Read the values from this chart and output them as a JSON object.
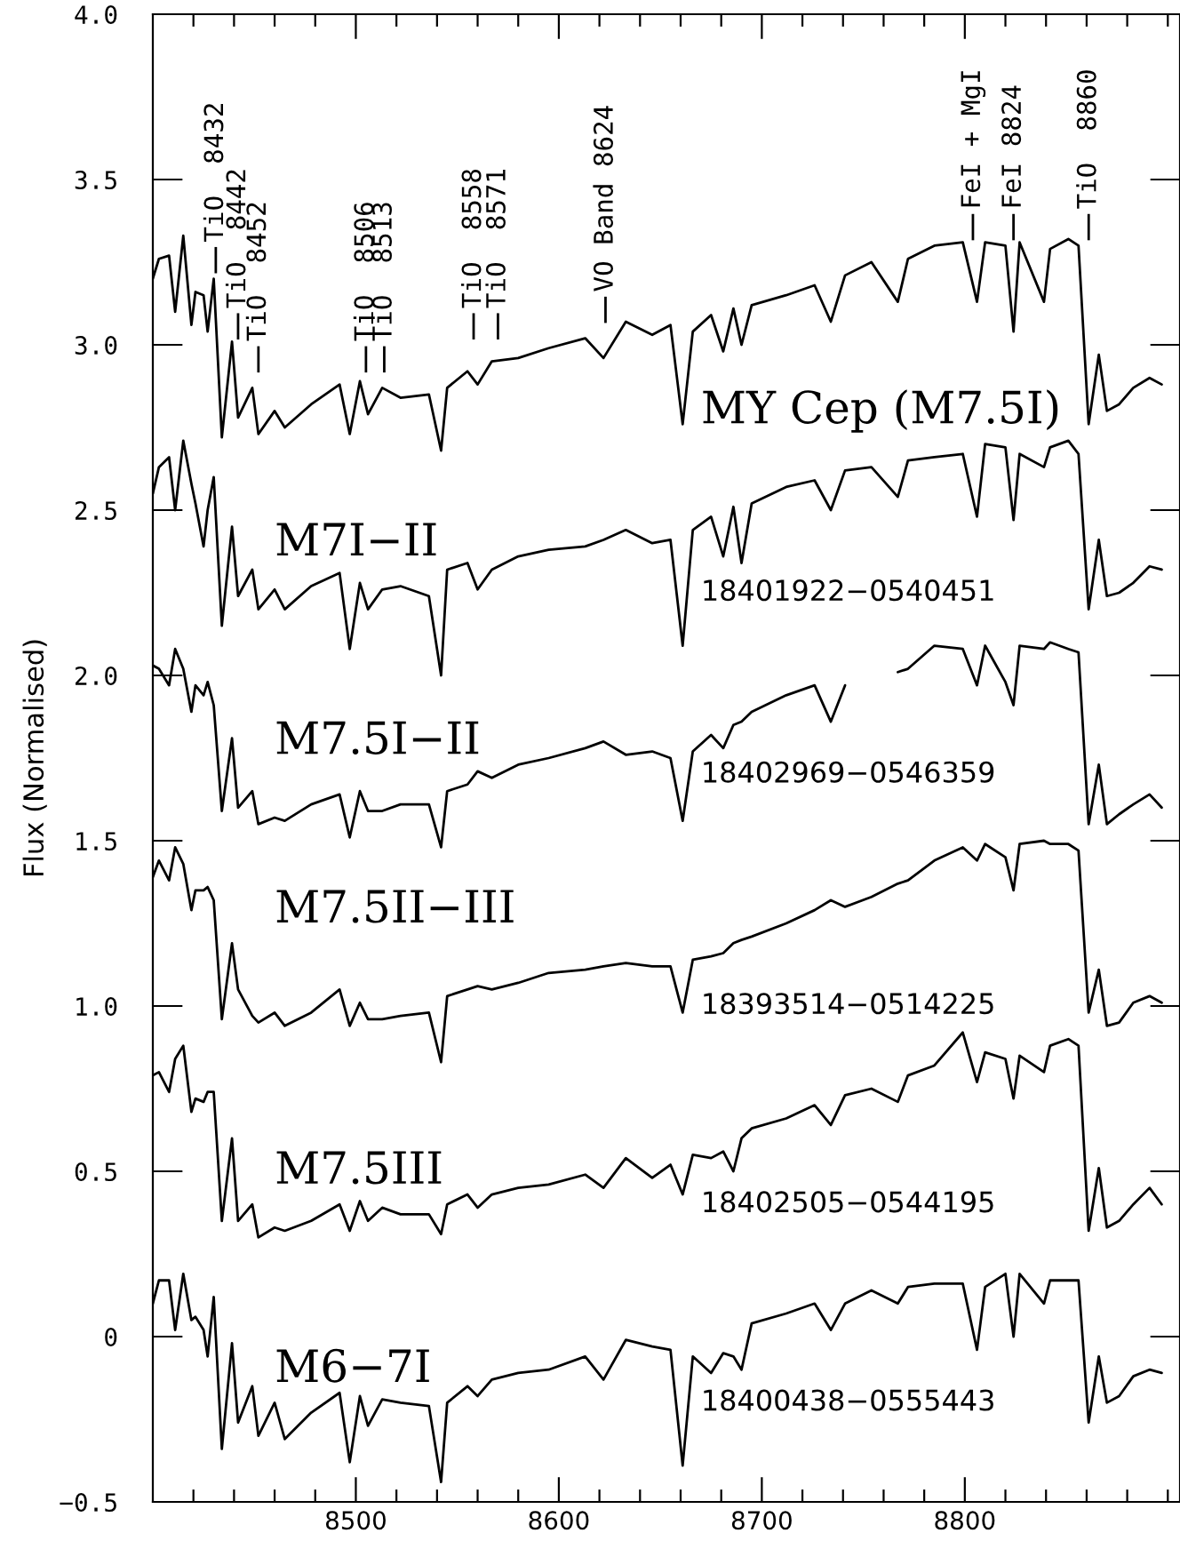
{
  "chart_data": {
    "type": "line",
    "ylabel": "Flux (Normalised)",
    "x": [
      8400,
      8403,
      8408,
      8411,
      8415,
      8419,
      8421,
      8425,
      8427,
      8430,
      8434,
      8439,
      8442,
      8449,
      8452,
      8460,
      8465,
      8478,
      8492,
      8497,
      8502,
      8506,
      8513,
      8522,
      8536,
      8542,
      8545,
      8555,
      8560,
      8567,
      8580,
      8595,
      8613,
      8622,
      8633,
      8646,
      8655,
      8661,
      8666,
      8675,
      8681,
      8686,
      8690,
      8695,
      8712,
      8726,
      8734,
      8741,
      8754,
      8767,
      8772,
      8785,
      8799,
      8806,
      8810,
      8820,
      8824,
      8827,
      8839,
      8842,
      8851,
      8856,
      8861,
      8866,
      8870,
      8876,
      8883,
      8891,
      8897
    ],
    "series": [
      {
        "color": "#000000",
        "values": [
          3.2,
          3.26,
          3.27,
          3.1,
          3.33,
          3.06,
          3.16,
          3.15,
          3.04,
          3.2,
          2.72,
          3.01,
          2.78,
          2.87,
          2.73,
          2.8,
          2.75,
          2.82,
          2.88,
          2.73,
          2.89,
          2.79,
          2.87,
          2.84,
          2.85,
          2.68,
          2.87,
          2.92,
          2.88,
          2.95,
          2.96,
          2.99,
          3.02,
          2.96,
          3.07,
          3.03,
          3.06,
          2.76,
          3.04,
          3.09,
          2.98,
          3.11,
          3.0,
          3.12,
          3.15,
          3.18,
          3.07,
          3.21,
          3.25,
          3.13,
          3.26,
          3.3,
          3.31,
          3.13,
          3.31,
          3.3,
          3.04,
          3.31,
          3.13,
          3.29,
          3.32,
          3.3,
          2.76,
          2.97,
          2.8,
          2.82,
          2.87,
          2.9,
          2.88
        ]
      },
      {
        "color": "#000000",
        "values": [
          2.55,
          2.63,
          2.66,
          2.5,
          2.71,
          2.58,
          2.52,
          2.39,
          2.5,
          2.6,
          2.15,
          2.45,
          2.24,
          2.32,
          2.2,
          2.26,
          2.2,
          2.27,
          2.31,
          2.08,
          2.28,
          2.2,
          2.26,
          2.27,
          2.24,
          2.0,
          2.32,
          2.34,
          2.26,
          2.32,
          2.36,
          2.38,
          2.39,
          2.41,
          2.44,
          2.4,
          2.41,
          2.09,
          2.44,
          2.48,
          2.36,
          2.51,
          2.34,
          2.52,
          2.57,
          2.59,
          2.5,
          2.62,
          2.63,
          2.54,
          2.65,
          2.66,
          2.67,
          2.48,
          2.7,
          2.69,
          2.47,
          2.67,
          2.63,
          2.69,
          2.71,
          2.67,
          2.2,
          2.41,
          2.24,
          2.25,
          2.28,
          2.33,
          2.32
        ]
      },
      {
        "color": "#000000",
        "values": [
          2.03,
          2.02,
          1.97,
          2.08,
          2.02,
          1.89,
          1.97,
          1.94,
          1.98,
          1.91,
          1.59,
          1.81,
          1.6,
          1.65,
          1.55,
          1.57,
          1.56,
          1.61,
          1.64,
          1.51,
          1.65,
          1.59,
          1.59,
          1.61,
          1.61,
          1.48,
          1.65,
          1.67,
          1.71,
          1.69,
          1.73,
          1.75,
          1.78,
          1.8,
          1.76,
          1.77,
          1.75,
          1.56,
          1.77,
          1.82,
          1.78,
          1.85,
          1.86,
          1.89,
          1.94,
          1.97,
          1.86,
          1.97,
          null,
          2.01,
          2.02,
          2.09,
          2.08,
          1.97,
          2.09,
          1.98,
          1.91,
          2.09,
          2.08,
          2.1,
          2.08,
          2.07,
          1.55,
          1.73,
          1.55,
          1.58,
          1.61,
          1.64,
          1.6
        ]
      },
      {
        "color": "#000000",
        "values": [
          1.39,
          1.44,
          1.38,
          1.48,
          1.43,
          1.29,
          1.35,
          1.35,
          1.36,
          1.32,
          0.96,
          1.19,
          1.05,
          0.97,
          0.95,
          0.98,
          0.94,
          0.98,
          1.05,
          0.94,
          1.01,
          0.96,
          0.96,
          0.97,
          0.98,
          0.83,
          1.03,
          1.05,
          1.06,
          1.05,
          1.07,
          1.1,
          1.11,
          1.12,
          1.13,
          1.12,
          1.12,
          0.98,
          1.14,
          1.15,
          1.16,
          1.19,
          1.2,
          1.21,
          1.25,
          1.29,
          1.32,
          1.3,
          1.33,
          1.37,
          1.38,
          1.44,
          1.48,
          1.44,
          1.49,
          1.45,
          1.35,
          1.49,
          1.5,
          1.49,
          1.49,
          1.47,
          0.98,
          1.11,
          0.94,
          0.95,
          1.01,
          1.03,
          1.01
        ]
      },
      {
        "color": "#000000",
        "values": [
          0.79,
          0.8,
          0.74,
          0.84,
          0.88,
          0.68,
          0.72,
          0.71,
          0.74,
          0.74,
          0.35,
          0.6,
          0.35,
          0.4,
          0.3,
          0.33,
          0.32,
          0.35,
          0.4,
          0.32,
          0.41,
          0.35,
          0.39,
          0.37,
          0.37,
          0.31,
          0.4,
          0.43,
          0.39,
          0.43,
          0.45,
          0.46,
          0.49,
          0.45,
          0.54,
          0.48,
          0.52,
          0.43,
          0.55,
          0.54,
          0.56,
          0.5,
          0.6,
          0.63,
          0.66,
          0.7,
          0.64,
          0.73,
          0.75,
          0.71,
          0.79,
          0.82,
          0.92,
          0.77,
          0.86,
          0.84,
          0.72,
          0.85,
          0.8,
          0.88,
          0.9,
          0.88,
          0.32,
          0.51,
          0.33,
          0.35,
          0.4,
          0.45,
          0.4
        ]
      },
      {
        "color": "#000000",
        "values": [
          0.1,
          0.17,
          0.17,
          0.02,
          0.19,
          0.05,
          0.06,
          0.02,
          -0.06,
          0.12,
          -0.34,
          -0.02,
          -0.26,
          -0.15,
          -0.3,
          -0.2,
          -0.31,
          -0.23,
          -0.17,
          -0.38,
          -0.18,
          -0.27,
          -0.19,
          -0.2,
          -0.21,
          -0.44,
          -0.2,
          -0.15,
          -0.18,
          -0.13,
          -0.11,
          -0.1,
          -0.06,
          -0.13,
          -0.01,
          -0.03,
          -0.04,
          -0.39,
          -0.06,
          -0.11,
          -0.05,
          -0.06,
          -0.1,
          0.04,
          0.07,
          0.1,
          0.02,
          0.1,
          0.14,
          0.1,
          0.15,
          0.16,
          0.16,
          -0.04,
          0.15,
          0.19,
          0.0,
          0.19,
          0.1,
          0.17,
          0.17,
          0.17,
          -0.26,
          -0.06,
          -0.2,
          -0.18,
          -0.12,
          -0.1,
          -0.11
        ]
      }
    ],
    "xlim": [
      8400,
      8906
    ],
    "ylim": [
      -0.5,
      4.0
    ],
    "xticks": [
      {
        "value": 8420,
        "label": null
      },
      {
        "value": 8440,
        "label": null
      },
      {
        "value": 8460,
        "label": null
      },
      {
        "value": 8480,
        "label": null
      },
      8500,
      {
        "value": 8520,
        "label": null
      },
      {
        "value": 8540,
        "label": null
      },
      {
        "value": 8560,
        "label": null
      },
      {
        "value": 8580,
        "label": null
      },
      8600,
      {
        "value": 8620,
        "label": null
      },
      {
        "value": 8640,
        "label": null
      },
      {
        "value": 8660,
        "label": null
      },
      {
        "value": 8680,
        "label": null
      },
      8700,
      {
        "value": 8720,
        "label": null
      },
      {
        "value": 8740,
        "label": null
      },
      {
        "value": 8760,
        "label": null
      },
      {
        "value": 8780,
        "label": null
      },
      8800,
      {
        "value": 8820,
        "label": null
      },
      {
        "value": 8840,
        "label": null
      },
      {
        "value": 8860,
        "label": null
      },
      {
        "value": 8880,
        "label": null
      },
      {
        "value": 8900,
        "label": null
      }
    ],
    "yticks": [
      {
        "value": -0.5,
        "label": "−0.5"
      },
      0,
      0.5,
      {
        "value": 1,
        "label": "1.0"
      },
      1.5,
      {
        "value": 2,
        "label": "2.0"
      },
      2.5,
      {
        "value": 3,
        "label": "3.0"
      },
      3.5,
      {
        "value": 4,
        "label": "4.0"
      }
    ],
    "grid": false,
    "legend": false,
    "annotations": [
      "TiO  8432",
      "TiO  8442",
      "TiO  8452",
      "TiO  8506",
      "TiO  8513",
      "TiO  8558",
      "TiO  8571",
      "VO Band 8624",
      "FeI + MgI",
      "FeI 8824",
      "TiO  8860",
      "MY Cep (M7.5I)",
      "M7I−II",
      "18401922−0540451",
      "M7.5I−II",
      "18402969−0546359",
      "M7.5II−III",
      "18393514−0514225",
      "M7.5III",
      "18402505−0544195",
      "M6−7I",
      "18400438−0555443"
    ]
  }
}
